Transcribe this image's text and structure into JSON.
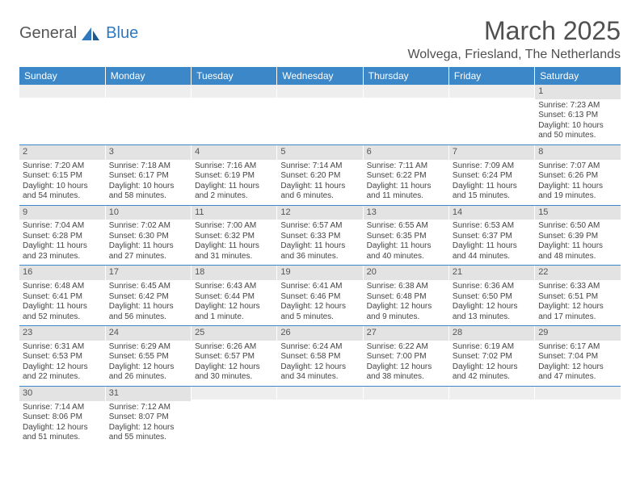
{
  "logo": {
    "general": "General",
    "blue": "Blue"
  },
  "title": "March 2025",
  "location": "Wolvega, Friesland, The Netherlands",
  "colors": {
    "header_bg": "#3b87c8",
    "header_fg": "#ffffff",
    "daynum_bg": "#e3e3e3",
    "border": "#3b87c8",
    "text": "#444444"
  },
  "day_headers": [
    "Sunday",
    "Monday",
    "Tuesday",
    "Wednesday",
    "Thursday",
    "Friday",
    "Saturday"
  ],
  "weeks": [
    [
      {
        "blank": true
      },
      {
        "blank": true
      },
      {
        "blank": true
      },
      {
        "blank": true
      },
      {
        "blank": true
      },
      {
        "blank": true
      },
      {
        "num": "1",
        "sunrise": "Sunrise: 7:23 AM",
        "sunset": "Sunset: 6:13 PM",
        "daylight": "Daylight: 10 hours and 50 minutes."
      }
    ],
    [
      {
        "num": "2",
        "sunrise": "Sunrise: 7:20 AM",
        "sunset": "Sunset: 6:15 PM",
        "daylight": "Daylight: 10 hours and 54 minutes."
      },
      {
        "num": "3",
        "sunrise": "Sunrise: 7:18 AM",
        "sunset": "Sunset: 6:17 PM",
        "daylight": "Daylight: 10 hours and 58 minutes."
      },
      {
        "num": "4",
        "sunrise": "Sunrise: 7:16 AM",
        "sunset": "Sunset: 6:19 PM",
        "daylight": "Daylight: 11 hours and 2 minutes."
      },
      {
        "num": "5",
        "sunrise": "Sunrise: 7:14 AM",
        "sunset": "Sunset: 6:20 PM",
        "daylight": "Daylight: 11 hours and 6 minutes."
      },
      {
        "num": "6",
        "sunrise": "Sunrise: 7:11 AM",
        "sunset": "Sunset: 6:22 PM",
        "daylight": "Daylight: 11 hours and 11 minutes."
      },
      {
        "num": "7",
        "sunrise": "Sunrise: 7:09 AM",
        "sunset": "Sunset: 6:24 PM",
        "daylight": "Daylight: 11 hours and 15 minutes."
      },
      {
        "num": "8",
        "sunrise": "Sunrise: 7:07 AM",
        "sunset": "Sunset: 6:26 PM",
        "daylight": "Daylight: 11 hours and 19 minutes."
      }
    ],
    [
      {
        "num": "9",
        "sunrise": "Sunrise: 7:04 AM",
        "sunset": "Sunset: 6:28 PM",
        "daylight": "Daylight: 11 hours and 23 minutes."
      },
      {
        "num": "10",
        "sunrise": "Sunrise: 7:02 AM",
        "sunset": "Sunset: 6:30 PM",
        "daylight": "Daylight: 11 hours and 27 minutes."
      },
      {
        "num": "11",
        "sunrise": "Sunrise: 7:00 AM",
        "sunset": "Sunset: 6:32 PM",
        "daylight": "Daylight: 11 hours and 31 minutes."
      },
      {
        "num": "12",
        "sunrise": "Sunrise: 6:57 AM",
        "sunset": "Sunset: 6:33 PM",
        "daylight": "Daylight: 11 hours and 36 minutes."
      },
      {
        "num": "13",
        "sunrise": "Sunrise: 6:55 AM",
        "sunset": "Sunset: 6:35 PM",
        "daylight": "Daylight: 11 hours and 40 minutes."
      },
      {
        "num": "14",
        "sunrise": "Sunrise: 6:53 AM",
        "sunset": "Sunset: 6:37 PM",
        "daylight": "Daylight: 11 hours and 44 minutes."
      },
      {
        "num": "15",
        "sunrise": "Sunrise: 6:50 AM",
        "sunset": "Sunset: 6:39 PM",
        "daylight": "Daylight: 11 hours and 48 minutes."
      }
    ],
    [
      {
        "num": "16",
        "sunrise": "Sunrise: 6:48 AM",
        "sunset": "Sunset: 6:41 PM",
        "daylight": "Daylight: 11 hours and 52 minutes."
      },
      {
        "num": "17",
        "sunrise": "Sunrise: 6:45 AM",
        "sunset": "Sunset: 6:42 PM",
        "daylight": "Daylight: 11 hours and 56 minutes."
      },
      {
        "num": "18",
        "sunrise": "Sunrise: 6:43 AM",
        "sunset": "Sunset: 6:44 PM",
        "daylight": "Daylight: 12 hours and 1 minute."
      },
      {
        "num": "19",
        "sunrise": "Sunrise: 6:41 AM",
        "sunset": "Sunset: 6:46 PM",
        "daylight": "Daylight: 12 hours and 5 minutes."
      },
      {
        "num": "20",
        "sunrise": "Sunrise: 6:38 AM",
        "sunset": "Sunset: 6:48 PM",
        "daylight": "Daylight: 12 hours and 9 minutes."
      },
      {
        "num": "21",
        "sunrise": "Sunrise: 6:36 AM",
        "sunset": "Sunset: 6:50 PM",
        "daylight": "Daylight: 12 hours and 13 minutes."
      },
      {
        "num": "22",
        "sunrise": "Sunrise: 6:33 AM",
        "sunset": "Sunset: 6:51 PM",
        "daylight": "Daylight: 12 hours and 17 minutes."
      }
    ],
    [
      {
        "num": "23",
        "sunrise": "Sunrise: 6:31 AM",
        "sunset": "Sunset: 6:53 PM",
        "daylight": "Daylight: 12 hours and 22 minutes."
      },
      {
        "num": "24",
        "sunrise": "Sunrise: 6:29 AM",
        "sunset": "Sunset: 6:55 PM",
        "daylight": "Daylight: 12 hours and 26 minutes."
      },
      {
        "num": "25",
        "sunrise": "Sunrise: 6:26 AM",
        "sunset": "Sunset: 6:57 PM",
        "daylight": "Daylight: 12 hours and 30 minutes."
      },
      {
        "num": "26",
        "sunrise": "Sunrise: 6:24 AM",
        "sunset": "Sunset: 6:58 PM",
        "daylight": "Daylight: 12 hours and 34 minutes."
      },
      {
        "num": "27",
        "sunrise": "Sunrise: 6:22 AM",
        "sunset": "Sunset: 7:00 PM",
        "daylight": "Daylight: 12 hours and 38 minutes."
      },
      {
        "num": "28",
        "sunrise": "Sunrise: 6:19 AM",
        "sunset": "Sunset: 7:02 PM",
        "daylight": "Daylight: 12 hours and 42 minutes."
      },
      {
        "num": "29",
        "sunrise": "Sunrise: 6:17 AM",
        "sunset": "Sunset: 7:04 PM",
        "daylight": "Daylight: 12 hours and 47 minutes."
      }
    ],
    [
      {
        "num": "30",
        "sunrise": "Sunrise: 7:14 AM",
        "sunset": "Sunset: 8:06 PM",
        "daylight": "Daylight: 12 hours and 51 minutes."
      },
      {
        "num": "31",
        "sunrise": "Sunrise: 7:12 AM",
        "sunset": "Sunset: 8:07 PM",
        "daylight": "Daylight: 12 hours and 55 minutes."
      },
      {
        "blank": true
      },
      {
        "blank": true
      },
      {
        "blank": true
      },
      {
        "blank": true
      },
      {
        "blank": true
      }
    ]
  ]
}
